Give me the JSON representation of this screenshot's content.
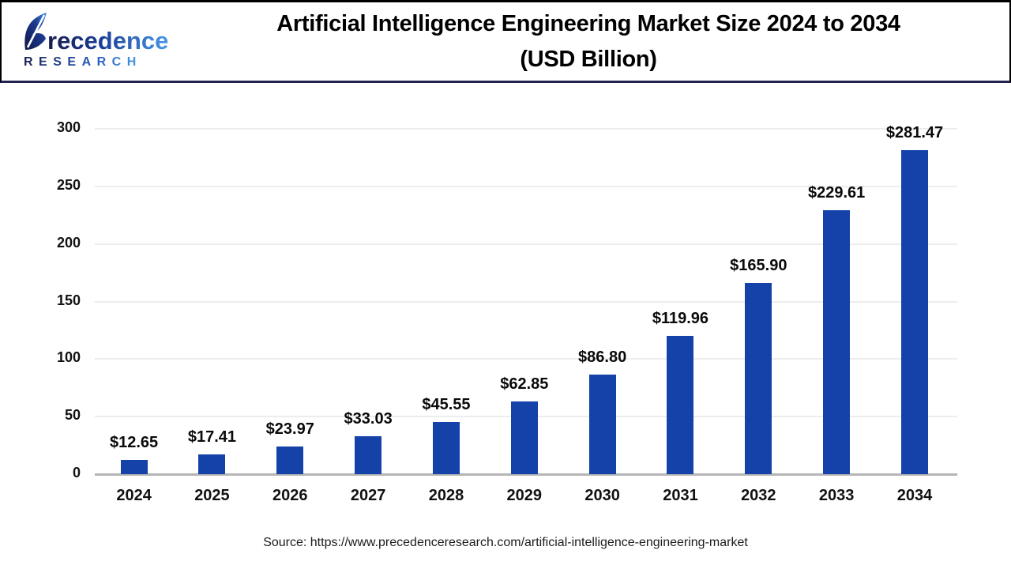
{
  "header": {
    "logo": {
      "name": "Precedence Research logo",
      "word_main": "recedence",
      "word_sub": "RESEARCH",
      "color_dark": "#151b4e",
      "color_light": "#4797e8"
    },
    "title_line1": "Artificial Intelligence Engineering Market Size 2024 to 2034",
    "title_line2": "(USD Billion)"
  },
  "chart_data": {
    "type": "bar",
    "title": "Artificial Intelligence Engineering Market Size 2024 to 2034 (USD Billion)",
    "categories": [
      "2024",
      "2025",
      "2026",
      "2027",
      "2028",
      "2029",
      "2030",
      "2031",
      "2032",
      "2033",
      "2034"
    ],
    "values": [
      12.65,
      17.41,
      23.97,
      33.03,
      45.55,
      62.85,
      86.8,
      119.96,
      165.9,
      229.61,
      281.47
    ],
    "value_labels": [
      "$12.65",
      "$17.41",
      "$23.97",
      "$33.03",
      "$45.55",
      "$62.85",
      "$86.80",
      "$119.96",
      "$165.90",
      "$229.61",
      "$281.47"
    ],
    "xlabel": "",
    "ylabel": "",
    "ylim": [
      0,
      300
    ],
    "yticks": [
      0,
      50,
      100,
      150,
      200,
      250,
      300
    ],
    "grid": true,
    "legend": "none",
    "bar_color": "#1442a9"
  },
  "footer": {
    "source": "Source: https://www.precedenceresearch.com/artificial-intelligence-engineering-market"
  }
}
